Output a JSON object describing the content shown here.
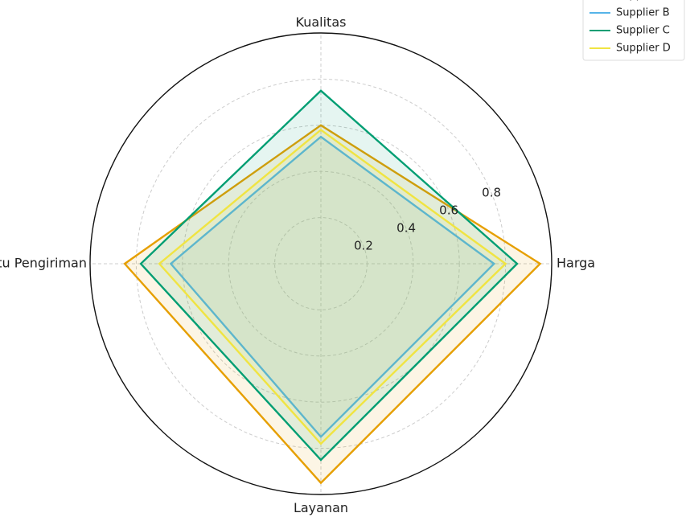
{
  "chart_data": {
    "type": "radar",
    "title": "",
    "axes": [
      "Harga",
      "Kualitas",
      "Waktu Pengiriman",
      "Layanan"
    ],
    "rlim": [
      0,
      1.0
    ],
    "radial_ticks": [
      0.2,
      0.4,
      0.6,
      0.8
    ],
    "grid": true,
    "legend_position": "top-right",
    "series": [
      {
        "name": "Supplier A",
        "values": [
          0.95,
          0.6,
          0.85,
          0.95
        ],
        "color": "#E69F00"
      },
      {
        "name": "Supplier B",
        "values": [
          0.75,
          0.55,
          0.65,
          0.75
        ],
        "color": "#56B4E9"
      },
      {
        "name": "Supplier C",
        "values": [
          0.85,
          0.75,
          0.78,
          0.85
        ],
        "color": "#009E73"
      },
      {
        "name": "Supplier D",
        "values": [
          0.8,
          0.58,
          0.7,
          0.78
        ],
        "color": "#F0E442"
      }
    ]
  }
}
